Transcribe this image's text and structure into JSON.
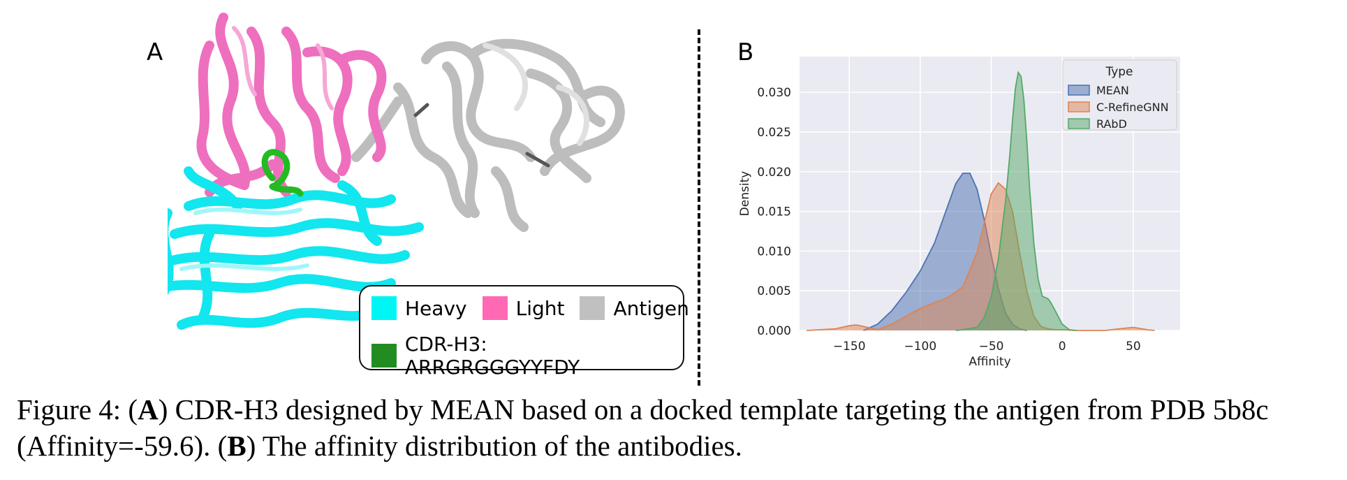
{
  "panels": {
    "a_label": "A",
    "b_label": "B"
  },
  "structure_legend": {
    "items": [
      {
        "label": "Heavy",
        "color": "#00f5f5"
      },
      {
        "label": "Light",
        "color": "#ff69b4"
      },
      {
        "label": "Antigen",
        "color": "#c0c0c0"
      }
    ],
    "cdr": {
      "label": "CDR-H3: ARRGRGGGYYFDY",
      "color": "#228b22"
    }
  },
  "chart_data": {
    "type": "area",
    "title": "",
    "xlabel": "Affinity",
    "ylabel": "Density",
    "xlim": [
      -185,
      83
    ],
    "ylim": [
      0,
      0.0345
    ],
    "xticks": [
      -150,
      -100,
      -50,
      0,
      50
    ],
    "xtick_labels": [
      "−150",
      "−100",
      "−50",
      "0",
      "50"
    ],
    "yticks": [
      0.0,
      0.005,
      0.01,
      0.015,
      0.02,
      0.025,
      0.03
    ],
    "ytick_labels": [
      "0.000",
      "0.005",
      "0.010",
      "0.015",
      "0.020",
      "0.025",
      "0.030"
    ],
    "grid": true,
    "background": "#eaeaf2",
    "legend": {
      "title": "Type",
      "placement": "top-right"
    },
    "series": [
      {
        "name": "MEAN",
        "color": "#4c72b0",
        "x": [
          -140,
          -130,
          -120,
          -110,
          -100,
          -90,
          -80,
          -75,
          -70,
          -65,
          -60,
          -55,
          -50,
          -45,
          -40,
          -35,
          -30,
          -25
        ],
        "y": [
          0,
          0.0008,
          0.0025,
          0.0048,
          0.0075,
          0.011,
          0.016,
          0.0185,
          0.0198,
          0.0198,
          0.0178,
          0.014,
          0.0095,
          0.0053,
          0.0022,
          0.0008,
          0.0002,
          0
        ]
      },
      {
        "name": "C-RefineGNN",
        "color": "#dd8452",
        "x": [
          -180,
          -160,
          -150,
          -145,
          -140,
          -130,
          -120,
          -110,
          -100,
          -90,
          -80,
          -70,
          -60,
          -55,
          -50,
          -45,
          -40,
          -35,
          -30,
          -25,
          -20,
          -15,
          -10,
          -5,
          0,
          10,
          20,
          30,
          40,
          50,
          60,
          65
        ],
        "y": [
          0,
          0.0002,
          0.0006,
          0.0007,
          0.0005,
          0.0001,
          0.0008,
          0.0018,
          0.0028,
          0.0035,
          0.0042,
          0.0055,
          0.0098,
          0.0135,
          0.0172,
          0.0186,
          0.0178,
          0.015,
          0.0098,
          0.005,
          0.0018,
          0.0005,
          0.0002,
          0.0001,
          0.0001,
          0,
          0,
          0,
          0.0002,
          0.0004,
          0.0001,
          0
        ]
      },
      {
        "name": "RAbD",
        "color": "#55a868",
        "x": [
          -75,
          -70,
          -60,
          -55,
          -50,
          -45,
          -40,
          -37,
          -35,
          -33,
          -31,
          -29,
          -27,
          -25,
          -23,
          -20,
          -17,
          -14,
          -10,
          -8,
          -5,
          0,
          5,
          10
        ],
        "y": [
          0,
          0.0001,
          0.0004,
          0.0016,
          0.0042,
          0.009,
          0.0162,
          0.022,
          0.0265,
          0.0305,
          0.0325,
          0.032,
          0.029,
          0.024,
          0.018,
          0.011,
          0.0065,
          0.0043,
          0.004,
          0.0035,
          0.0025,
          0.0008,
          0.0001,
          0
        ]
      }
    ]
  },
  "caption": {
    "lead": "Figure 4: (",
    "a": "A",
    "mid": ") CDR-H3 designed by MEAN based on a docked template targeting the antigen from PDB 5b8c (Affinity=-59.6). (",
    "b": "B",
    "tail": ") The affinity distribution of the antibodies."
  }
}
